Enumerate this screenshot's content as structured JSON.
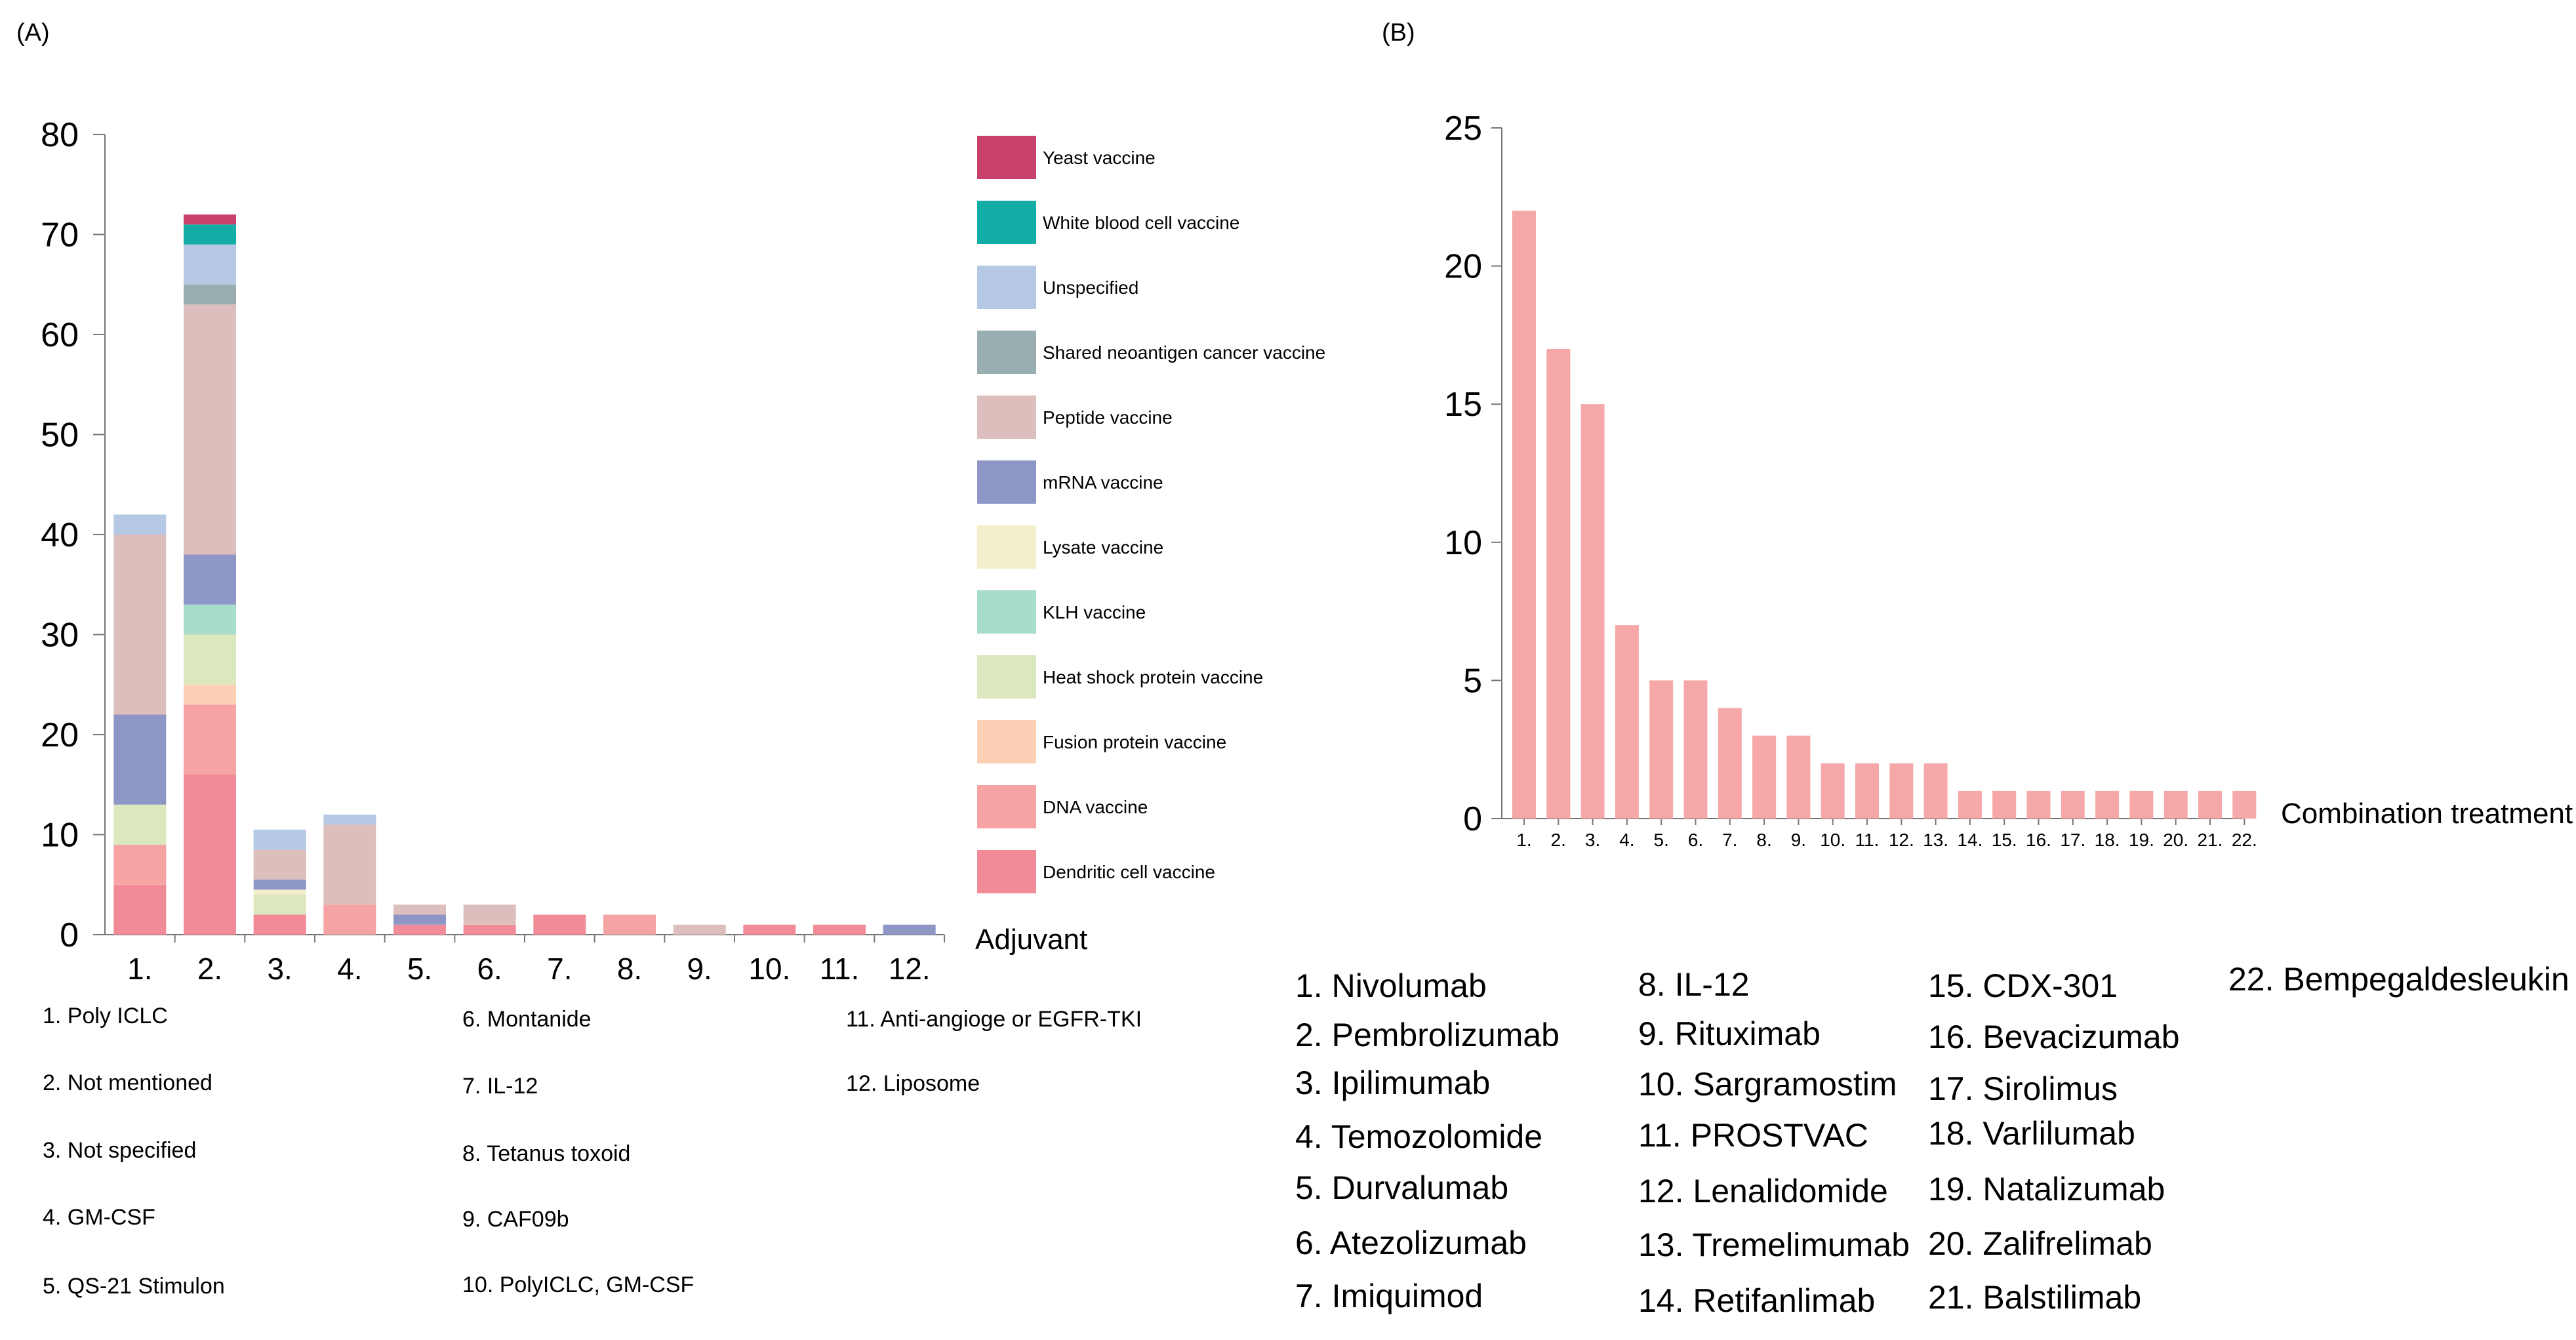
{
  "panel_a_label": "(A)",
  "panel_b_label": "(B)",
  "chart_data": [
    {
      "type": "bar",
      "stacked": true,
      "title": "",
      "xlabel": "Adjuvant",
      "ylabel": "",
      "ylim": [
        0,
        80
      ],
      "yticks": [
        0,
        10,
        20,
        30,
        40,
        50,
        60,
        70,
        80
      ],
      "categories": [
        "1.",
        "2.",
        "3.",
        "4.",
        "5.",
        "6.",
        "7.",
        "8.",
        "9.",
        "10.",
        "11.",
        "12."
      ],
      "series": [
        {
          "name": "Dendritic cell vaccine",
          "color": "#f28b98",
          "values": [
            5,
            16,
            2,
            0,
            1,
            1,
            2,
            0,
            0,
            1,
            1,
            0
          ]
        },
        {
          "name": "DNA vaccine",
          "color": "#f6a3a3",
          "values": [
            4,
            7,
            0,
            3,
            0,
            0,
            0,
            2,
            0,
            0,
            0,
            0
          ]
        },
        {
          "name": "Fusion protein vaccine",
          "color": "#fbd0b5",
          "values": [
            0,
            2,
            0,
            0,
            0,
            0,
            0,
            0,
            0,
            0,
            0,
            0
          ]
        },
        {
          "name": "Heat shock protein vaccine",
          "color": "#dbe8bd",
          "values": [
            4,
            5,
            2,
            0,
            0,
            0,
            0,
            0,
            0,
            0,
            0,
            0
          ]
        },
        {
          "name": "KLH vaccine",
          "color": "#a8dccb",
          "values": [
            0,
            3,
            0,
            0,
            0,
            0,
            0,
            0,
            0,
            0,
            0,
            0
          ]
        },
        {
          "name": "Lysate vaccine",
          "color": "#f3efca",
          "values": [
            0,
            0,
            0.5,
            0,
            0,
            0,
            0,
            0,
            0,
            0,
            0,
            0
          ]
        },
        {
          "name": "mRNA vaccine",
          "color": "#8e96c6",
          "values": [
            9,
            5,
            1,
            0,
            1,
            0,
            0,
            0,
            0,
            0,
            0,
            1
          ]
        },
        {
          "name": "Peptide vaccine",
          "color": "#dcbfbd",
          "values": [
            18,
            25,
            3,
            8,
            1,
            2,
            0,
            0,
            1,
            0,
            0,
            0
          ]
        },
        {
          "name": "Shared neoantigen cancer vaccine",
          "color": "#98aeb1",
          "values": [
            0,
            2,
            0,
            0,
            0,
            0,
            0,
            0,
            0,
            0,
            0,
            0
          ]
        },
        {
          "name": "Unspecified",
          "color": "#b5c8e4",
          "values": [
            2,
            4,
            2,
            1,
            0,
            0,
            0,
            0,
            0,
            0,
            0,
            0
          ]
        },
        {
          "name": "White blood cell vaccine",
          "color": "#14ada5",
          "values": [
            0,
            2,
            0,
            0,
            0,
            0,
            0,
            0,
            0,
            0,
            0,
            0
          ]
        },
        {
          "name": "Yeast vaccine",
          "color": "#c8416a",
          "values": [
            0,
            1,
            0,
            0,
            0,
            0,
            0,
            0,
            0,
            0,
            0,
            0
          ]
        }
      ],
      "legend_order": [
        "Yeast vaccine",
        "White blood cell vaccine",
        "Unspecified",
        "Shared neoantigen cancer vaccine",
        "Peptide vaccine",
        "mRNA vaccine",
        "Lysate vaccine",
        "KLH vaccine",
        "Heat shock protein vaccine",
        "Fusion protein vaccine",
        "DNA vaccine",
        "Dendritic cell vaccine"
      ],
      "legend_placement": "right",
      "grid": false
    },
    {
      "type": "bar",
      "title": "",
      "xlabel": "Combination treatment",
      "ylabel": "",
      "ylim": [
        0,
        25
      ],
      "yticks": [
        0,
        5,
        10,
        15,
        20,
        25
      ],
      "categories": [
        "1.",
        "2.",
        "3.",
        "4.",
        "5.",
        "6.",
        "7.",
        "8.",
        "9.",
        "10.",
        "11.",
        "12.",
        "13.",
        "14.",
        "15.",
        "16.",
        "17.",
        "18.",
        "19.",
        "20.",
        "21.",
        "22."
      ],
      "values": [
        22,
        17,
        15,
        7,
        5,
        5,
        4,
        3,
        3,
        2,
        2,
        2,
        2,
        1,
        1,
        1,
        1,
        1,
        1,
        1,
        1,
        1
      ],
      "color": "#f6a8a8",
      "grid": false
    }
  ],
  "key_a": [
    "1. Poly ICLC",
    "2. Not mentioned",
    "3. Not specified",
    "4. GM-CSF",
    "5. QS-21 Stimulon",
    "6. Montanide",
    "7. IL-12",
    "8. Tetanus toxoid",
    "9. CAF09b",
    "10. PolyICLC, GM-CSF",
    "11. Anti-angioge or EGFR-TKI",
    "12. Liposome"
  ],
  "key_b": [
    "1. Nivolumab",
    "2. Pembrolizumab",
    "3. Ipilimumab",
    "4. Temozolomide",
    "5. Durvalumab",
    "6. Atezolizumab",
    "7. Imiquimod",
    "8. IL-12",
    "9. Rituximab",
    "10. Sargramostim",
    "11. PROSTVAC",
    "12. Lenalidomide",
    "13. Tremelimumab",
    "14. Retifanlimab",
    "15. CDX-301",
    "16. Bevacizumab",
    "17. Sirolimus",
    "18. Varlilumab",
    "19. Natalizumab",
    "20. Zalifrelimab",
    "21. Balstilimab",
    "22. Bempegaldesleukin"
  ]
}
